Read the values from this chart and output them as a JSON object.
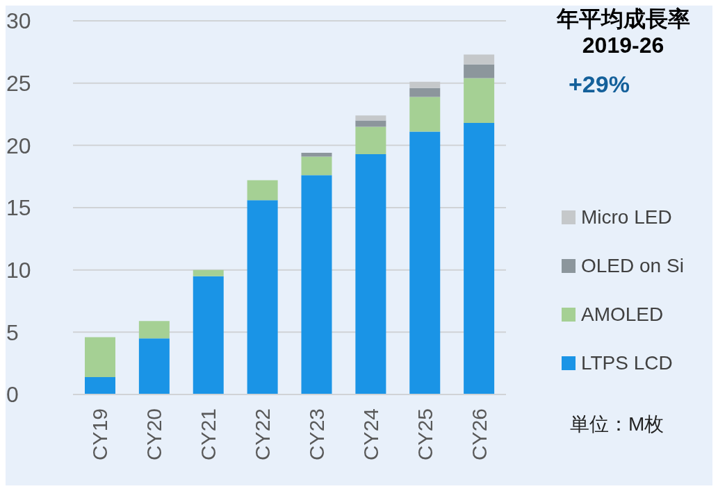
{
  "chart_data": {
    "type": "bar",
    "stacked": true,
    "title": "年平均成長率\n2019-26",
    "annotations": [
      "+29%",
      "単位：M枚"
    ],
    "categories": [
      "CY19",
      "CY20",
      "CY21",
      "CY22",
      "CY23",
      "CY24",
      "CY25",
      "CY26"
    ],
    "series": [
      {
        "name": "LTPS LCD",
        "color": "#1a94e6",
        "values": [
          1.4,
          4.5,
          9.5,
          15.6,
          17.6,
          19.3,
          21.1,
          21.8
        ]
      },
      {
        "name": "AMOLED",
        "color": "#a5d094",
        "values": [
          3.2,
          1.4,
          0.5,
          1.6,
          1.5,
          2.2,
          2.8,
          3.6
        ]
      },
      {
        "name": "OLED on Si",
        "color": "#8c969c",
        "values": [
          0,
          0,
          0,
          0,
          0.3,
          0.5,
          0.7,
          1.1
        ]
      },
      {
        "name": "Micro LED",
        "color": "#c5c8ca",
        "values": [
          0,
          0,
          0,
          0,
          0,
          0.4,
          0.5,
          0.8
        ]
      }
    ],
    "ylim": [
      0,
      30
    ],
    "yticks": [
      0,
      5,
      10,
      15,
      20,
      25,
      30
    ],
    "grid": "y",
    "legend": "right"
  }
}
